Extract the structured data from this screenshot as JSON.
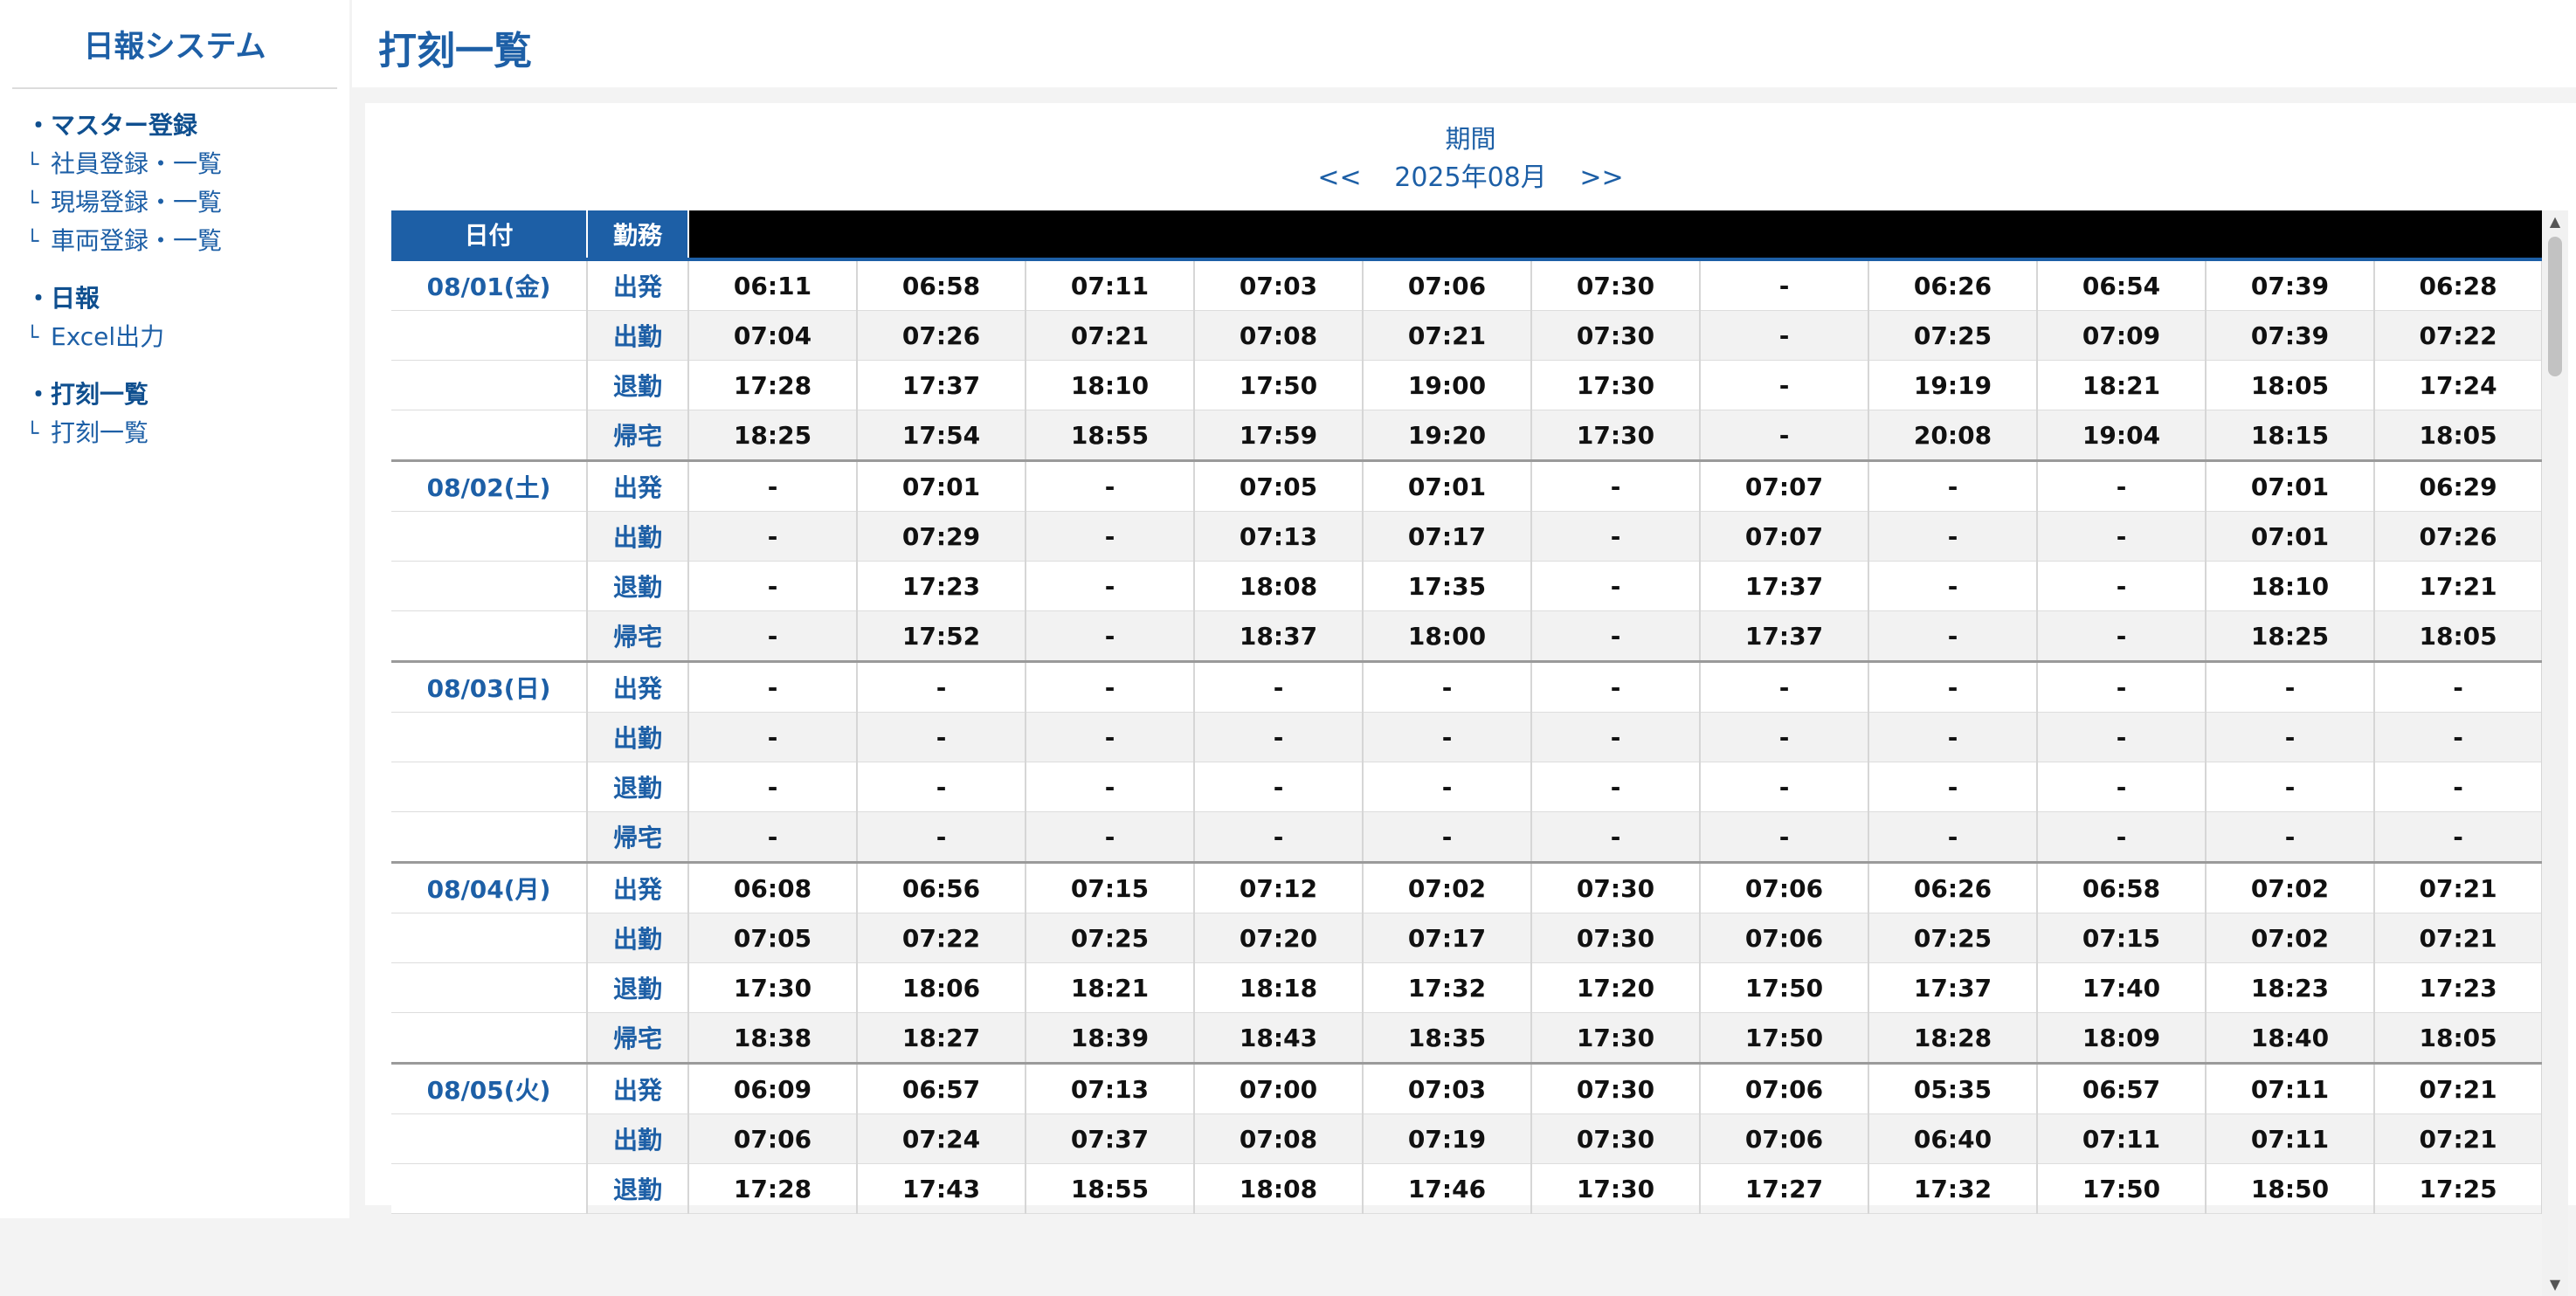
{
  "sidebar": {
    "title": "日報システム",
    "sections": [
      {
        "heading": "・マスター登録",
        "items": [
          "社員登録・一覧",
          "現場登録・一覧",
          "車両登録・一覧"
        ]
      },
      {
        "heading": "・日報",
        "items": [
          "Excel出力"
        ]
      },
      {
        "heading": "・打刻一覧",
        "items": [
          "打刻一覧"
        ]
      }
    ],
    "branch_symbol": "└"
  },
  "header": {
    "title": "打刻一覧"
  },
  "period": {
    "label": "期間",
    "prev": "<<",
    "month": "2025年08月",
    "next": ">>"
  },
  "table": {
    "headers": {
      "date": "日付",
      "kind": "勤務"
    },
    "kinds": [
      "出発",
      "出勤",
      "退勤",
      "帰宅"
    ],
    "days": [
      {
        "date": "08/01(金)",
        "rows": [
          [
            "06:11",
            "06:58",
            "07:11",
            "07:03",
            "07:06",
            "07:30",
            "-",
            "06:26",
            "06:54",
            "07:39",
            "06:28"
          ],
          [
            "07:04",
            "07:26",
            "07:21",
            "07:08",
            "07:21",
            "07:30",
            "-",
            "07:25",
            "07:09",
            "07:39",
            "07:22"
          ],
          [
            "17:28",
            "17:37",
            "18:10",
            "17:50",
            "19:00",
            "17:30",
            "-",
            "19:19",
            "18:21",
            "18:05",
            "17:24"
          ],
          [
            "18:25",
            "17:54",
            "18:55",
            "17:59",
            "19:20",
            "17:30",
            "-",
            "20:08",
            "19:04",
            "18:15",
            "18:05"
          ]
        ]
      },
      {
        "date": "08/02(土)",
        "rows": [
          [
            "-",
            "07:01",
            "-",
            "07:05",
            "07:01",
            "-",
            "07:07",
            "-",
            "-",
            "07:01",
            "06:29"
          ],
          [
            "-",
            "07:29",
            "-",
            "07:13",
            "07:17",
            "-",
            "07:07",
            "-",
            "-",
            "07:01",
            "07:26"
          ],
          [
            "-",
            "17:23",
            "-",
            "18:08",
            "17:35",
            "-",
            "17:37",
            "-",
            "-",
            "18:10",
            "17:21"
          ],
          [
            "-",
            "17:52",
            "-",
            "18:37",
            "18:00",
            "-",
            "17:37",
            "-",
            "-",
            "18:25",
            "18:05"
          ]
        ]
      },
      {
        "date": "08/03(日)",
        "rows": [
          [
            "-",
            "-",
            "-",
            "-",
            "-",
            "-",
            "-",
            "-",
            "-",
            "-",
            "-"
          ],
          [
            "-",
            "-",
            "-",
            "-",
            "-",
            "-",
            "-",
            "-",
            "-",
            "-",
            "-"
          ],
          [
            "-",
            "-",
            "-",
            "-",
            "-",
            "-",
            "-",
            "-",
            "-",
            "-",
            "-"
          ],
          [
            "-",
            "-",
            "-",
            "-",
            "-",
            "-",
            "-",
            "-",
            "-",
            "-",
            "-"
          ]
        ]
      },
      {
        "date": "08/04(月)",
        "rows": [
          [
            "06:08",
            "06:56",
            "07:15",
            "07:12",
            "07:02",
            "07:30",
            "07:06",
            "06:26",
            "06:58",
            "07:02",
            "07:21"
          ],
          [
            "07:05",
            "07:22",
            "07:25",
            "07:20",
            "07:17",
            "07:30",
            "07:06",
            "07:25",
            "07:15",
            "07:02",
            "07:21"
          ],
          [
            "17:30",
            "18:06",
            "18:21",
            "18:18",
            "17:32",
            "17:20",
            "17:50",
            "17:37",
            "17:40",
            "18:23",
            "17:23"
          ],
          [
            "18:38",
            "18:27",
            "18:39",
            "18:43",
            "18:35",
            "17:30",
            "17:50",
            "18:28",
            "18:09",
            "18:40",
            "18:05"
          ]
        ]
      },
      {
        "date": "08/05(火)",
        "rows": [
          [
            "06:09",
            "06:57",
            "07:13",
            "07:00",
            "07:03",
            "07:30",
            "07:06",
            "05:35",
            "06:57",
            "07:11",
            "07:21"
          ],
          [
            "07:06",
            "07:24",
            "07:37",
            "07:08",
            "07:19",
            "07:30",
            "07:06",
            "06:40",
            "07:11",
            "07:11",
            "07:21"
          ],
          [
            "17:28",
            "17:43",
            "18:55",
            "18:08",
            "17:46",
            "17:30",
            "17:27",
            "17:32",
            "17:50",
            "18:50",
            "17:25"
          ]
        ]
      }
    ]
  },
  "scrollbar": {
    "up": "▲",
    "down": "▼"
  }
}
